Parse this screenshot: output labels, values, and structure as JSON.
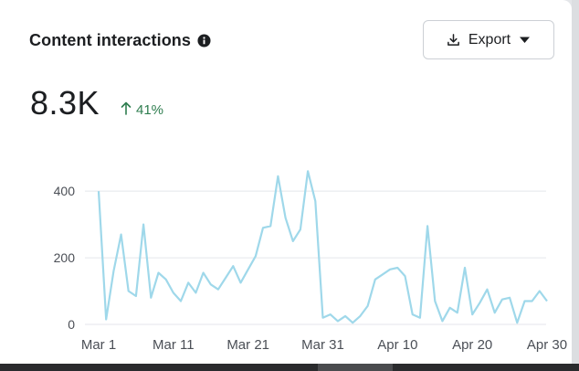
{
  "card": {
    "title": "Content interactions",
    "info_icon": "info-icon",
    "export_label": "Export",
    "export_icon": "download-icon",
    "dropdown_icon": "caret-down-icon"
  },
  "summary": {
    "value": "8.3K",
    "change_icon": "arrow-up-icon",
    "change": "41%",
    "change_color": "#2e7d4f"
  },
  "chart_data": {
    "type": "line",
    "title": "",
    "xlabel": "",
    "ylabel": "",
    "ylim": [
      0,
      480
    ],
    "y_ticks": [
      "0",
      "200",
      "400"
    ],
    "y_tick_values": [
      0,
      200,
      400
    ],
    "x_tick_labels": [
      "Mar 1",
      "Mar 11",
      "Mar 21",
      "Mar 31",
      "Apr 10",
      "Apr 20",
      "Apr 30"
    ],
    "x_tick_indices": [
      0,
      10,
      20,
      30,
      40,
      50,
      60
    ],
    "line_color": "#9fd8ea",
    "grid": true,
    "series": [
      {
        "name": "Content interactions",
        "values": [
          400,
          15,
          160,
          270,
          100,
          85,
          300,
          80,
          155,
          135,
          95,
          70,
          125,
          95,
          155,
          120,
          105,
          140,
          175,
          125,
          165,
          205,
          290,
          295,
          445,
          320,
          250,
          285,
          460,
          370,
          20,
          30,
          10,
          25,
          5,
          25,
          55,
          135,
          150,
          165,
          170,
          145,
          30,
          20,
          295,
          70,
          10,
          50,
          35,
          170,
          30,
          65,
          105,
          35,
          75,
          80,
          5,
          70,
          70,
          100,
          70
        ]
      }
    ]
  }
}
